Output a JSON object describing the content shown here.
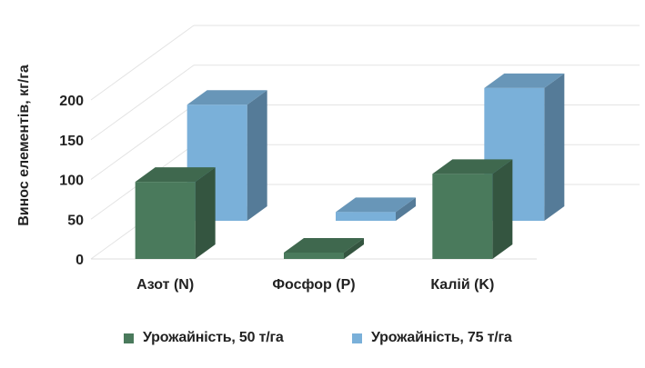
{
  "chart_data": {
    "type": "bar",
    "subtype": "3d-clustered-depth",
    "title": "",
    "xlabel": "",
    "ylabel": "Винос елементів, кг/га",
    "categories": [
      "Азот (N)",
      "Фосфор (P)",
      "Калій (K)"
    ],
    "series": [
      {
        "name": "Урожайність, 50 т/га",
        "values": [
          97,
          8,
          107
        ],
        "color": "#4a7a5c"
      },
      {
        "name": "Урожайність, 75 т/га",
        "values": [
          146,
          11,
          167
        ],
        "color": "#7ab0d9"
      }
    ],
    "ylim": [
      0,
      200
    ],
    "yticks": [
      0,
      50,
      100,
      150,
      200
    ],
    "grid": true,
    "legend_position": "bottom"
  }
}
